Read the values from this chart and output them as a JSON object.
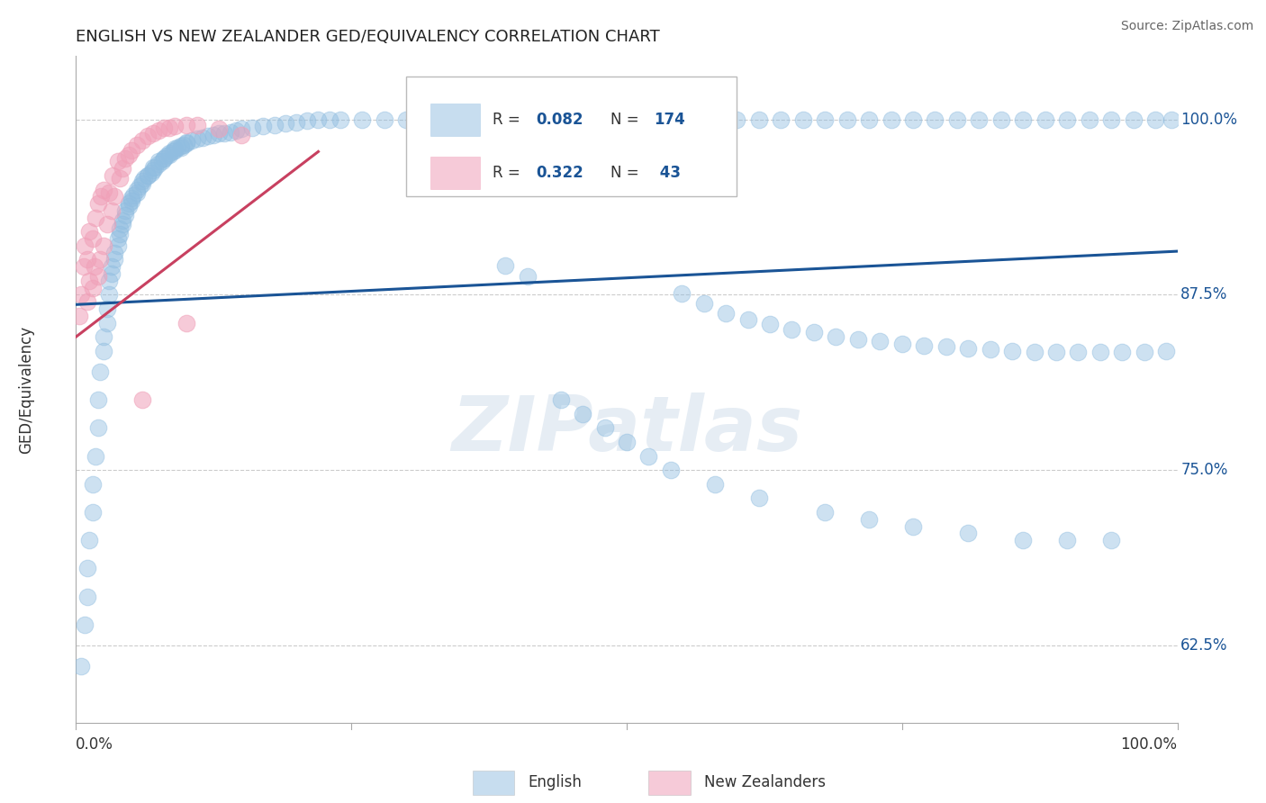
{
  "title": "ENGLISH VS NEW ZEALANDER GED/EQUIVALENCY CORRELATION CHART",
  "source": "Source: ZipAtlas.com",
  "ylabel": "GED/Equivalency",
  "y_ticks": [
    0.625,
    0.75,
    0.875,
    1.0
  ],
  "y_tick_labels": [
    "62.5%",
    "75.0%",
    "87.5%",
    "100.0%"
  ],
  "x_lim": [
    0.0,
    1.0
  ],
  "y_lim": [
    0.57,
    1.045
  ],
  "blue_color": "#90bde0",
  "pink_color": "#f0a0b8",
  "blue_line_color": "#1a5496",
  "pink_line_color": "#c84060",
  "watermark": "ZIPatlas",
  "blue_intercept": 0.868,
  "blue_slope": 0.038,
  "pink_intercept": 0.845,
  "pink_slope": 0.6,
  "pink_line_x_end": 0.22,
  "blue_points_x": [
    0.005,
    0.008,
    0.01,
    0.01,
    0.012,
    0.015,
    0.015,
    0.018,
    0.02,
    0.02,
    0.022,
    0.025,
    0.025,
    0.028,
    0.028,
    0.03,
    0.03,
    0.032,
    0.032,
    0.035,
    0.035,
    0.038,
    0.038,
    0.04,
    0.04,
    0.042,
    0.042,
    0.045,
    0.045,
    0.048,
    0.048,
    0.05,
    0.05,
    0.052,
    0.055,
    0.055,
    0.058,
    0.06,
    0.06,
    0.062,
    0.065,
    0.065,
    0.068,
    0.07,
    0.07,
    0.072,
    0.075,
    0.075,
    0.078,
    0.08,
    0.08,
    0.082,
    0.085,
    0.085,
    0.088,
    0.09,
    0.09,
    0.092,
    0.095,
    0.095,
    0.098,
    0.1,
    0.1,
    0.105,
    0.11,
    0.115,
    0.12,
    0.125,
    0.13,
    0.135,
    0.14,
    0.145,
    0.15,
    0.16,
    0.17,
    0.18,
    0.19,
    0.2,
    0.21,
    0.22,
    0.23,
    0.24,
    0.26,
    0.28,
    0.3,
    0.32,
    0.34,
    0.36,
    0.38,
    0.4,
    0.42,
    0.44,
    0.46,
    0.48,
    0.5,
    0.52,
    0.54,
    0.56,
    0.58,
    0.6,
    0.62,
    0.64,
    0.66,
    0.68,
    0.7,
    0.72,
    0.74,
    0.76,
    0.78,
    0.8,
    0.82,
    0.84,
    0.86,
    0.88,
    0.9,
    0.92,
    0.94,
    0.96,
    0.98,
    0.995,
    0.39,
    0.41,
    0.55,
    0.57,
    0.59,
    0.61,
    0.63,
    0.65,
    0.67,
    0.69,
    0.71,
    0.73,
    0.75,
    0.77,
    0.79,
    0.81,
    0.83,
    0.85,
    0.87,
    0.89,
    0.91,
    0.93,
    0.95,
    0.97,
    0.99,
    0.44,
    0.46,
    0.48,
    0.5,
    0.52,
    0.54,
    0.58,
    0.62,
    0.68,
    0.72,
    0.76,
    0.81,
    0.86,
    0.9,
    0.94
  ],
  "blue_points_y": [
    0.61,
    0.64,
    0.66,
    0.68,
    0.7,
    0.72,
    0.74,
    0.76,
    0.78,
    0.8,
    0.82,
    0.835,
    0.845,
    0.855,
    0.865,
    0.875,
    0.885,
    0.89,
    0.895,
    0.9,
    0.905,
    0.91,
    0.915,
    0.918,
    0.922,
    0.925,
    0.928,
    0.932,
    0.935,
    0.938,
    0.94,
    0.942,
    0.944,
    0.946,
    0.948,
    0.95,
    0.952,
    0.954,
    0.956,
    0.958,
    0.96,
    0.96,
    0.962,
    0.964,
    0.966,
    0.966,
    0.968,
    0.97,
    0.97,
    0.972,
    0.972,
    0.974,
    0.975,
    0.976,
    0.977,
    0.978,
    0.979,
    0.98,
    0.98,
    0.981,
    0.982,
    0.983,
    0.984,
    0.985,
    0.986,
    0.987,
    0.988,
    0.989,
    0.99,
    0.99,
    0.991,
    0.992,
    0.993,
    0.994,
    0.995,
    0.996,
    0.997,
    0.998,
    0.999,
    1.0,
    1.0,
    1.0,
    1.0,
    1.0,
    1.0,
    1.0,
    1.0,
    1.0,
    1.0,
    1.0,
    1.0,
    1.0,
    1.0,
    1.0,
    1.0,
    1.0,
    1.0,
    1.0,
    1.0,
    1.0,
    1.0,
    1.0,
    1.0,
    1.0,
    1.0,
    1.0,
    1.0,
    1.0,
    1.0,
    1.0,
    1.0,
    1.0,
    1.0,
    1.0,
    1.0,
    1.0,
    1.0,
    1.0,
    1.0,
    1.0,
    0.896,
    0.888,
    0.876,
    0.869,
    0.862,
    0.857,
    0.854,
    0.85,
    0.848,
    0.845,
    0.843,
    0.842,
    0.84,
    0.839,
    0.838,
    0.837,
    0.836,
    0.835,
    0.834,
    0.834,
    0.834,
    0.834,
    0.834,
    0.834,
    0.835,
    0.8,
    0.79,
    0.78,
    0.77,
    0.76,
    0.75,
    0.74,
    0.73,
    0.72,
    0.715,
    0.71,
    0.705,
    0.7,
    0.7,
    0.7
  ],
  "pink_points_x": [
    0.003,
    0.005,
    0.007,
    0.008,
    0.01,
    0.01,
    0.012,
    0.012,
    0.015,
    0.015,
    0.017,
    0.018,
    0.02,
    0.02,
    0.022,
    0.023,
    0.025,
    0.025,
    0.028,
    0.03,
    0.032,
    0.033,
    0.035,
    0.038,
    0.04,
    0.042,
    0.045,
    0.048,
    0.05,
    0.055,
    0.06,
    0.065,
    0.07,
    0.075,
    0.08,
    0.085,
    0.09,
    0.1,
    0.11,
    0.13,
    0.15,
    0.06,
    0.1
  ],
  "pink_points_y": [
    0.86,
    0.875,
    0.895,
    0.91,
    0.87,
    0.9,
    0.885,
    0.92,
    0.88,
    0.915,
    0.895,
    0.93,
    0.888,
    0.94,
    0.9,
    0.945,
    0.91,
    0.95,
    0.925,
    0.948,
    0.935,
    0.96,
    0.945,
    0.97,
    0.958,
    0.965,
    0.972,
    0.975,
    0.978,
    0.982,
    0.985,
    0.988,
    0.99,
    0.992,
    0.994,
    0.994,
    0.995,
    0.996,
    0.996,
    0.993,
    0.989,
    0.8,
    0.855
  ]
}
